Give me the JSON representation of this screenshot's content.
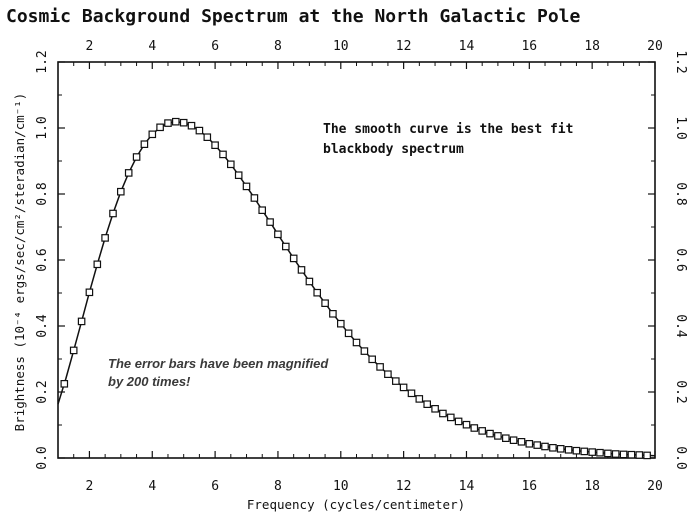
{
  "chart_data": {
    "type": "scatter",
    "title": "Cosmic Background Spectrum at the North Galactic Pole",
    "xlabel": "Frequency (cycles/centimeter)",
    "ylabel": "Brightness (10⁻⁴ ergs/sec/cm²/steradian/cm⁻¹)",
    "xlim": [
      1,
      20
    ],
    "ylim": [
      0,
      1.2
    ],
    "x_ticks": [
      2,
      4,
      6,
      8,
      10,
      12,
      14,
      16,
      18,
      20
    ],
    "x_tick_labels": [
      "2",
      "4",
      "6",
      "8",
      "10",
      "12",
      "14",
      "16",
      "18",
      "20"
    ],
    "y_ticks": [
      0.0,
      0.2,
      0.4,
      0.6,
      0.8,
      1.0,
      1.2
    ],
    "y_tick_labels": [
      "0.0",
      "0.2",
      "0.4",
      "0.6",
      "0.8",
      "1.0",
      "1.2"
    ],
    "annotations": [
      {
        "lines": [
          "The smooth curve is the best fit",
          "blackbody spectrum"
        ]
      },
      {
        "lines": [
          "The error bars have been magnified",
          "by 200 times!"
        ]
      }
    ],
    "series": [
      {
        "type": "line",
        "x": [
          1.0,
          1.25,
          1.5,
          1.75,
          2.0,
          2.25,
          2.5,
          2.75,
          3.0,
          3.25,
          3.5,
          3.75,
          4.0,
          4.25,
          4.5,
          4.75,
          5.0,
          5.25,
          5.5,
          5.75,
          6.0,
          6.25,
          6.5,
          6.75,
          7.0,
          7.25,
          7.5,
          7.75,
          8.0,
          8.25,
          8.5,
          8.75,
          9.0,
          9.25,
          9.5,
          9.75,
          10.0,
          10.25,
          10.5,
          10.75,
          11.0,
          11.25,
          11.5,
          11.75,
          12.0,
          12.25,
          12.5,
          12.75,
          13.0,
          13.25,
          13.5,
          13.75,
          14.0,
          14.25,
          14.5,
          14.75,
          15.0,
          15.25,
          15.5,
          15.75,
          16.0,
          16.25,
          16.5,
          16.75,
          17.0,
          17.25,
          17.5,
          17.75,
          18.0,
          18.25,
          18.5,
          18.75,
          19.0,
          19.25,
          19.5,
          19.75,
          20.0
        ],
        "y": [
          0.163,
          0.241,
          0.326,
          0.414,
          0.502,
          0.587,
          0.667,
          0.741,
          0.807,
          0.864,
          0.912,
          0.951,
          0.981,
          1.002,
          1.015,
          1.019,
          1.016,
          1.007,
          0.992,
          0.972,
          0.948,
          0.92,
          0.89,
          0.857,
          0.823,
          0.788,
          0.751,
          0.715,
          0.678,
          0.641,
          0.605,
          0.57,
          0.535,
          0.501,
          0.469,
          0.437,
          0.407,
          0.378,
          0.35,
          0.324,
          0.299,
          0.276,
          0.254,
          0.233,
          0.214,
          0.196,
          0.179,
          0.163,
          0.149,
          0.135,
          0.123,
          0.111,
          0.101,
          0.091,
          0.082,
          0.074,
          0.067,
          0.06,
          0.054,
          0.049,
          0.043,
          0.039,
          0.035,
          0.031,
          0.028,
          0.025,
          0.022,
          0.02,
          0.018,
          0.016,
          0.014,
          0.012,
          0.011,
          0.01,
          0.009,
          0.008,
          0.007
        ]
      },
      {
        "type": "scatter",
        "marker": "square",
        "x": [
          1.2,
          1.5,
          1.75,
          2.0,
          2.25,
          2.5,
          2.75,
          3.0,
          3.25,
          3.5,
          3.75,
          4.0,
          4.25,
          4.5,
          4.75,
          5.0,
          5.25,
          5.5,
          5.75,
          6.0,
          6.25,
          6.5,
          6.75,
          7.0,
          7.25,
          7.5,
          7.75,
          8.0,
          8.25,
          8.5,
          8.75,
          9.0,
          9.25,
          9.5,
          9.75,
          10.0,
          10.25,
          10.5,
          10.75,
          11.0,
          11.25,
          11.5,
          11.75,
          12.0,
          12.25,
          12.5,
          12.75,
          13.0,
          13.25,
          13.5,
          13.75,
          14.0,
          14.25,
          14.5,
          14.75,
          15.0,
          15.25,
          15.5,
          15.75,
          16.0,
          16.25,
          16.5,
          16.75,
          17.0,
          17.25,
          17.5,
          17.75,
          18.0,
          18.25,
          18.5,
          18.75,
          19.0,
          19.25,
          19.5,
          19.75
        ],
        "y": [
          0.225,
          0.326,
          0.414,
          0.502,
          0.587,
          0.667,
          0.741,
          0.807,
          0.864,
          0.912,
          0.951,
          0.981,
          1.002,
          1.015,
          1.019,
          1.016,
          1.007,
          0.992,
          0.972,
          0.948,
          0.92,
          0.89,
          0.857,
          0.823,
          0.788,
          0.751,
          0.715,
          0.678,
          0.641,
          0.605,
          0.57,
          0.535,
          0.501,
          0.469,
          0.437,
          0.407,
          0.378,
          0.35,
          0.324,
          0.299,
          0.276,
          0.254,
          0.233,
          0.214,
          0.196,
          0.179,
          0.163,
          0.149,
          0.135,
          0.123,
          0.111,
          0.101,
          0.091,
          0.082,
          0.074,
          0.067,
          0.06,
          0.054,
          0.049,
          0.043,
          0.039,
          0.035,
          0.031,
          0.028,
          0.025,
          0.022,
          0.02,
          0.018,
          0.016,
          0.014,
          0.012,
          0.011,
          0.01,
          0.009,
          0.008
        ]
      }
    ]
  }
}
